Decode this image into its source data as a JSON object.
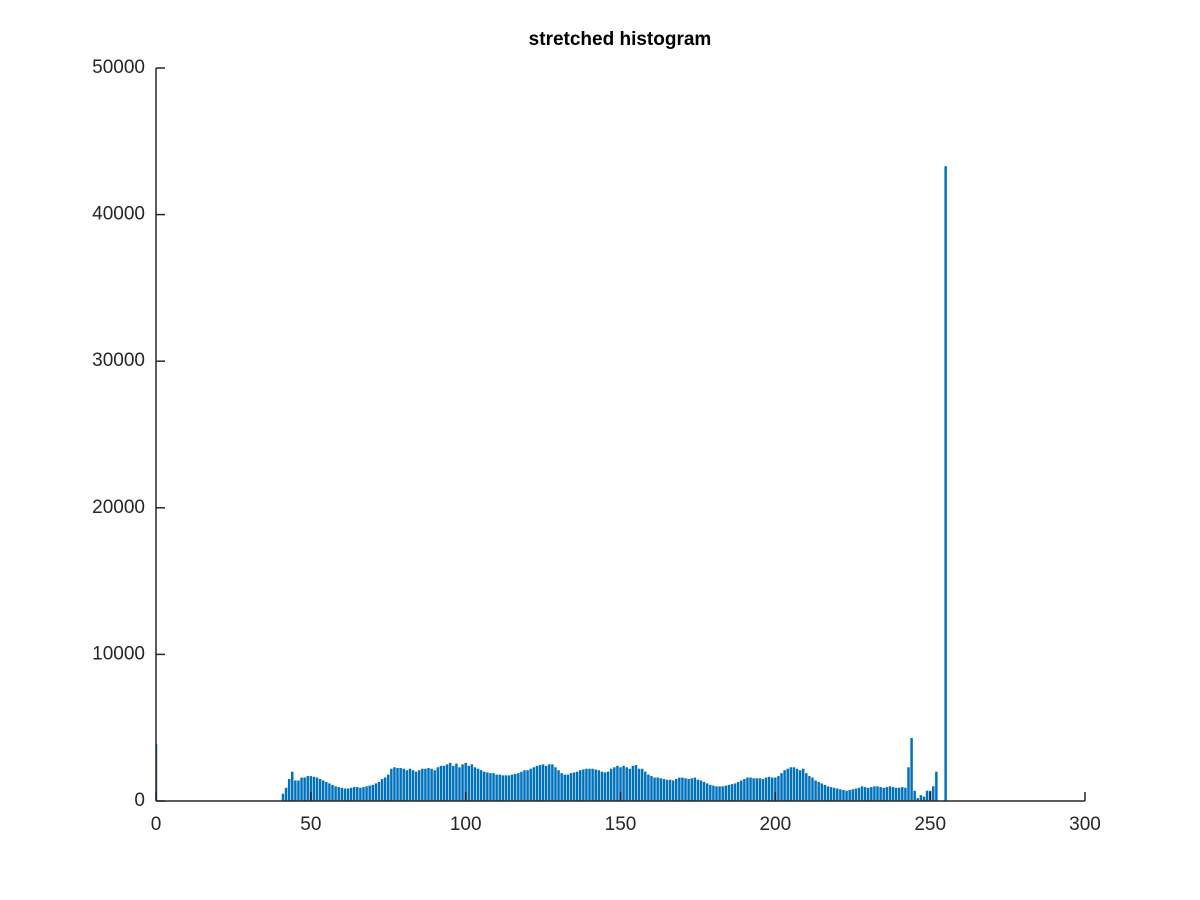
{
  "chart_data": {
    "type": "bar",
    "title": "stretched histogram",
    "x": [
      0,
      1,
      2,
      3,
      4,
      5,
      6,
      7,
      8,
      9,
      10,
      11,
      12,
      13,
      14,
      15,
      16,
      17,
      18,
      19,
      20,
      21,
      22,
      23,
      24,
      25,
      26,
      27,
      28,
      29,
      30,
      31,
      32,
      33,
      34,
      35,
      36,
      37,
      38,
      39,
      40,
      41,
      42,
      43,
      44,
      45,
      46,
      47,
      48,
      49,
      50,
      51,
      52,
      53,
      54,
      55,
      56,
      57,
      58,
      59,
      60,
      61,
      62,
      63,
      64,
      65,
      66,
      67,
      68,
      69,
      70,
      71,
      72,
      73,
      74,
      75,
      76,
      77,
      78,
      79,
      80,
      81,
      82,
      83,
      84,
      85,
      86,
      87,
      88,
      89,
      90,
      91,
      92,
      93,
      94,
      95,
      96,
      97,
      98,
      99,
      100,
      101,
      102,
      103,
      104,
      105,
      106,
      107,
      108,
      109,
      110,
      111,
      112,
      113,
      114,
      115,
      116,
      117,
      118,
      119,
      120,
      121,
      122,
      123,
      124,
      125,
      126,
      127,
      128,
      129,
      130,
      131,
      132,
      133,
      134,
      135,
      136,
      137,
      138,
      139,
      140,
      141,
      142,
      143,
      144,
      145,
      146,
      147,
      148,
      149,
      150,
      151,
      152,
      153,
      154,
      155,
      156,
      157,
      158,
      159,
      160,
      161,
      162,
      163,
      164,
      165,
      166,
      167,
      168,
      169,
      170,
      171,
      172,
      173,
      174,
      175,
      176,
      177,
      178,
      179,
      180,
      181,
      182,
      183,
      184,
      185,
      186,
      187,
      188,
      189,
      190,
      191,
      192,
      193,
      194,
      195,
      196,
      197,
      198,
      199,
      200,
      201,
      202,
      203,
      204,
      205,
      206,
      207,
      208,
      209,
      210,
      211,
      212,
      213,
      214,
      215,
      216,
      217,
      218,
      219,
      220,
      221,
      222,
      223,
      224,
      225,
      226,
      227,
      228,
      229,
      230,
      231,
      232,
      233,
      234,
      235,
      236,
      237,
      238,
      239,
      240,
      241,
      242,
      243,
      244,
      245,
      246,
      247,
      248,
      249,
      250,
      251,
      252,
      253,
      254,
      255
    ],
    "values": [
      3900,
      0,
      0,
      0,
      0,
      0,
      0,
      0,
      0,
      0,
      0,
      0,
      0,
      0,
      0,
      0,
      0,
      0,
      0,
      0,
      0,
      0,
      0,
      0,
      0,
      0,
      0,
      0,
      0,
      0,
      0,
      0,
      0,
      0,
      0,
      0,
      0,
      0,
      0,
      0,
      0,
      500,
      900,
      1500,
      2000,
      1400,
      1400,
      1600,
      1600,
      1700,
      1700,
      1650,
      1600,
      1500,
      1400,
      1300,
      1200,
      1100,
      1000,
      950,
      900,
      850,
      850,
      900,
      950,
      950,
      900,
      950,
      1000,
      1050,
      1100,
      1200,
      1300,
      1500,
      1600,
      1800,
      2200,
      2300,
      2250,
      2250,
      2200,
      2100,
      2200,
      2100,
      2000,
      2100,
      2200,
      2200,
      2250,
      2200,
      2100,
      2300,
      2400,
      2400,
      2500,
      2600,
      2400,
      2550,
      2300,
      2500,
      2600,
      2400,
      2500,
      2300,
      2200,
      2100,
      2000,
      1950,
      1900,
      1900,
      1800,
      1800,
      1750,
      1750,
      1750,
      1800,
      1850,
      1900,
      2000,
      2100,
      2100,
      2200,
      2300,
      2400,
      2450,
      2500,
      2400,
      2500,
      2500,
      2300,
      2100,
      1900,
      1800,
      1800,
      1900,
      1950,
      2000,
      2100,
      2150,
      2200,
      2200,
      2200,
      2150,
      2100,
      2000,
      1950,
      2000,
      2200,
      2300,
      2400,
      2300,
      2400,
      2300,
      2200,
      2400,
      2450,
      2200,
      2200,
      2000,
      1800,
      1700,
      1600,
      1600,
      1550,
      1500,
      1450,
      1450,
      1400,
      1500,
      1600,
      1600,
      1550,
      1500,
      1550,
      1600,
      1450,
      1400,
      1300,
      1200,
      1100,
      1050,
      1000,
      1000,
      1000,
      1050,
      1100,
      1150,
      1200,
      1300,
      1400,
      1500,
      1600,
      1600,
      1550,
      1550,
      1550,
      1500,
      1600,
      1650,
      1600,
      1600,
      1700,
      1900,
      2100,
      2200,
      2300,
      2300,
      2200,
      2100,
      2200,
      1900,
      1700,
      1600,
      1400,
      1300,
      1200,
      1100,
      1000,
      950,
      900,
      850,
      800,
      750,
      700,
      750,
      800,
      850,
      900,
      1000,
      950,
      900,
      950,
      1000,
      1000,
      950,
      900,
      950,
      1000,
      950,
      900,
      900,
      950,
      900,
      2300,
      4300,
      700,
      200,
      400,
      300,
      700,
      700,
      1000,
      2000,
      0,
      0,
      43300
    ],
    "color": "#0072bd",
    "xlim": [
      0,
      300
    ],
    "xticks": [
      0,
      50,
      100,
      150,
      200,
      250,
      300
    ],
    "ylim": [
      0,
      50000
    ],
    "yticks": [
      0,
      10000,
      20000,
      30000,
      40000,
      50000
    ]
  }
}
